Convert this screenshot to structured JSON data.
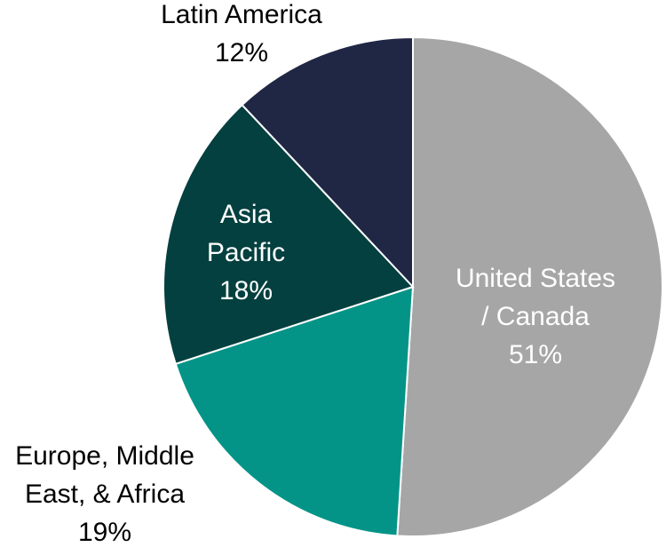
{
  "chart_data": {
    "type": "pie",
    "categories": [
      [
        "United States",
        "/ Canada"
      ],
      [
        "Europe, Middle",
        "East, & Africa"
      ],
      [
        "Asia",
        "Pacific"
      ],
      [
        "Latin America"
      ]
    ],
    "values": [
      51,
      19,
      18,
      12
    ],
    "value_labels": [
      "51%",
      "19%",
      "18%",
      "12%"
    ],
    "colors": [
      "#a6a6a6",
      "#039487",
      "#03403f",
      "#1f2744"
    ]
  }
}
